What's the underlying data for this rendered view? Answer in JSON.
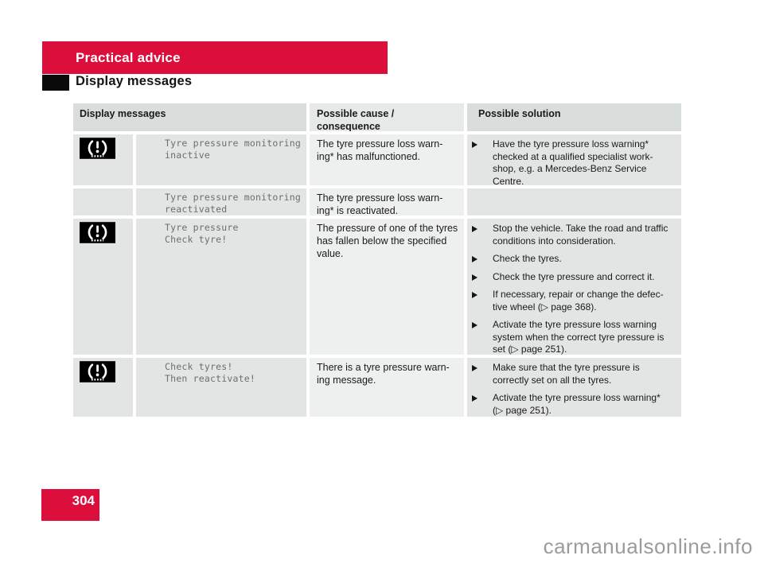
{
  "page": {
    "section_title": "Practical advice",
    "page_heading": "Display messages",
    "page_number": "304",
    "watermark": "carmanualsonline.info"
  },
  "colors": {
    "banner_red": "#DB0E3C",
    "header_bg": "#D9DDDC",
    "header_cause_bg": "#E6E9E8",
    "cell_bg": "#E2E5E4",
    "cause_bg": "#EEF0EF",
    "icon_bg": "#000000",
    "icon_glyph": "#FFFFFF"
  },
  "table": {
    "headers": [
      "Display messages",
      "Possible cause /\nconsequence",
      "Possible solution"
    ],
    "rows": [
      {
        "icon": "tyre-pressure-warning",
        "message": "Tyre pressure monitoring\ninactive",
        "cause": "The tyre pressure loss warn-\ning* has malfunctioned.",
        "solutions": [
          "Have the tyre pressure loss warning*\nchecked at a qualified specialist work-\nshop, e.g. a Mercedes-Benz Service\nCentre."
        ]
      },
      {
        "icon": null,
        "message": "Tyre pressure monitoring\nreactivated",
        "cause": "The tyre pressure loss warn-\ning* is reactivated.",
        "solutions": []
      },
      {
        "icon": "tyre-pressure-warning",
        "message": "Tyre pressure\nCheck tyre!",
        "cause": "The pressure of one of the tyres\nhas fallen below the specified\nvalue.",
        "solutions": [
          "Stop the vehicle. Take the road and traffic\nconditions into consideration.",
          "Check the tyres.",
          "Check the tyre pressure and correct it.",
          "If necessary, repair or change the defec-\ntive wheel (▷ page 368).",
          "Activate the tyre pressure loss warning\nsystem when the correct tyre pressure is\nset (▷ page 251)."
        ]
      },
      {
        "icon": "tyre-pressure-warning",
        "message": "Check tyres!\nThen reactivate!",
        "cause": "There is a tyre pressure warn-\ning message.",
        "solutions": [
          "Make sure that the tyre pressure is\ncorrectly set on all the tyres.",
          "Activate the tyre pressure loss warning*\n(▷ page 251)."
        ]
      }
    ]
  }
}
